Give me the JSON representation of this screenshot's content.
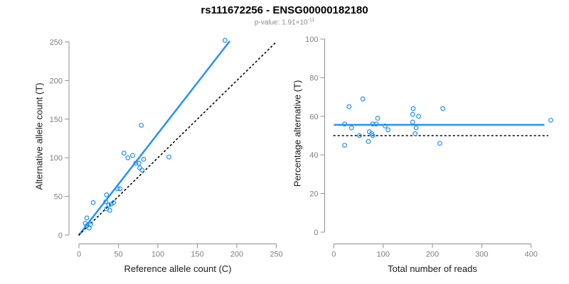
{
  "title": "rs111672256 - ENSG00000182180",
  "subtitle": {
    "text": "p-value: 1.91×10",
    "exponent": "-11"
  },
  "colors": {
    "accent_blue": "#1E90FF",
    "dotted_black": "#000000",
    "axis_gray": "#8f8f8f",
    "tick_label_gray": "#7f7f7f",
    "subtitle_gray": "#8c8c8c"
  },
  "chart_data": [
    {
      "type": "scatter",
      "panel": "left",
      "xlabel": "Reference allele count (C)",
      "ylabel": "Alternative allele count (T)",
      "xlim": [
        0,
        250
      ],
      "ylim": [
        0,
        250
      ],
      "xticks": [
        0,
        50,
        100,
        150,
        200,
        250
      ],
      "yticks": [
        0,
        50,
        100,
        150,
        200,
        250
      ],
      "grid": false,
      "point_color": "#1E90FF",
      "points": [
        [
          8,
          15
        ],
        [
          10,
          12
        ],
        [
          13,
          9
        ],
        [
          15,
          14
        ],
        [
          10,
          22
        ],
        [
          18,
          42
        ],
        [
          34,
          43
        ],
        [
          38,
          39
        ],
        [
          41,
          40
        ],
        [
          44,
          42
        ],
        [
          35,
          34
        ],
        [
          39,
          32
        ],
        [
          35,
          52
        ],
        [
          49,
          60
        ],
        [
          52,
          60
        ],
        [
          57,
          106
        ],
        [
          62,
          100
        ],
        [
          68,
          103
        ],
        [
          72,
          93
        ],
        [
          76,
          93
        ],
        [
          77,
          87
        ],
        [
          80,
          84
        ],
        [
          82,
          98
        ],
        [
          114,
          101
        ],
        [
          79,
          142
        ],
        [
          185,
          252
        ]
      ],
      "lines": [
        {
          "name": "regression",
          "style": "solid",
          "color": "#1E90FF",
          "width": 2.4,
          "from": [
            0,
            0
          ],
          "to": [
            191,
            251
          ]
        },
        {
          "name": "identity",
          "style": "dotted",
          "color": "#000000",
          "width": 1.6,
          "from": [
            0,
            0
          ],
          "to": [
            250,
            250
          ]
        }
      ]
    },
    {
      "type": "scatter",
      "panel": "right",
      "xlabel": "Total number of reads",
      "ylabel": "Percentage alternative (T)",
      "xlim": [
        0,
        400
      ],
      "ylim": [
        0,
        100
      ],
      "xticks": [
        0,
        100,
        200,
        300,
        400
      ],
      "yticks": [
        0,
        20,
        40,
        60,
        80,
        100
      ],
      "grid": false,
      "point_color": "#1E90FF",
      "points": [
        [
          22,
          56
        ],
        [
          22,
          45
        ],
        [
          31,
          65
        ],
        [
          36,
          54
        ],
        [
          52,
          50
        ],
        [
          59,
          69
        ],
        [
          70,
          47
        ],
        [
          72,
          52
        ],
        [
          77,
          51
        ],
        [
          79,
          50
        ],
        [
          79,
          56
        ],
        [
          86,
          56
        ],
        [
          89,
          59
        ],
        [
          104,
          55
        ],
        [
          110,
          53
        ],
        [
          160,
          57
        ],
        [
          160,
          61
        ],
        [
          161,
          64
        ],
        [
          165,
          51
        ],
        [
          167,
          54
        ],
        [
          172,
          60
        ],
        [
          215,
          46
        ],
        [
          221,
          64
        ],
        [
          440,
          58
        ]
      ],
      "lines": [
        {
          "name": "fitted-mean",
          "style": "solid",
          "color": "#1E90FF",
          "width": 2.4,
          "from": [
            0,
            55.6
          ],
          "to": [
            427,
            55.6
          ]
        },
        {
          "name": "null-expectation",
          "style": "dotted",
          "color": "#000000",
          "width": 1.6,
          "from": [
            0,
            50
          ],
          "to": [
            434,
            50
          ]
        }
      ]
    }
  ]
}
